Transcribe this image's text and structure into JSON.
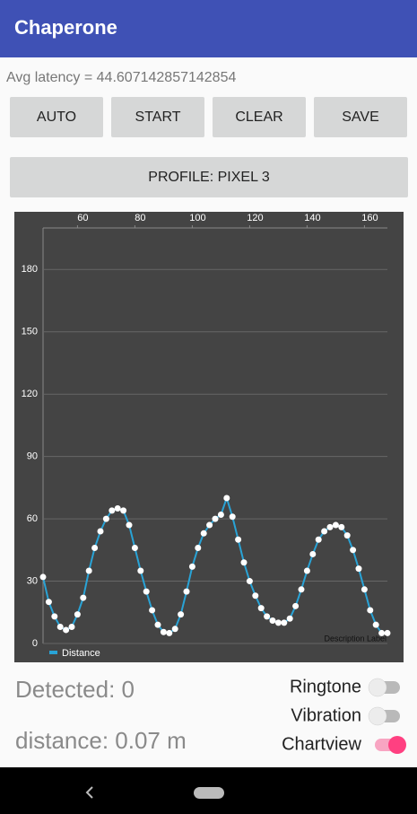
{
  "app_bar": {
    "title": "Chaperone"
  },
  "latency": "Avg latency = 44.607142857142854",
  "buttons": [
    "AUTO",
    "START",
    "CLEAR",
    "SAVE"
  ],
  "profile_button": "PROFILE: PIXEL 3",
  "chart_data": {
    "type": "line",
    "description": "Description Label",
    "x": [
      48,
      50,
      52,
      54,
      56,
      58,
      60,
      62,
      64,
      66,
      68,
      70,
      72,
      74,
      76,
      78,
      80,
      82,
      84,
      86,
      88,
      90,
      92,
      94,
      96,
      98,
      100,
      102,
      104,
      106,
      108,
      110,
      112,
      114,
      116,
      118,
      120,
      122,
      124,
      126,
      128,
      130,
      132,
      134,
      136,
      138,
      140,
      142,
      144,
      146,
      148,
      150,
      152,
      154,
      156,
      158,
      160,
      162,
      164,
      166,
      168
    ],
    "series": [
      {
        "name": "Distance",
        "color": "#29a3d6",
        "point_color": "#ffffff",
        "values": [
          32,
          20,
          13,
          8,
          6.5,
          8,
          14,
          22,
          35,
          46,
          54,
          60,
          64,
          65,
          64,
          57,
          46,
          35,
          25,
          16,
          9,
          5.5,
          5,
          7,
          14,
          25,
          37,
          46,
          53,
          57,
          60,
          62,
          70,
          61,
          50,
          39,
          30,
          23,
          17,
          13,
          11,
          10,
          10,
          12,
          18,
          26,
          35,
          43,
          50,
          54,
          56,
          57,
          56,
          52,
          45,
          36,
          26,
          16,
          9,
          5,
          5
        ]
      }
    ],
    "xlim": [
      48,
      168
    ],
    "ylim": [
      0,
      200
    ],
    "xticks": [
      60,
      80,
      100,
      120,
      140,
      160
    ],
    "yticks": [
      0,
      30,
      60,
      90,
      120,
      150,
      180
    ],
    "grid": true
  },
  "detected": "Detected: 0",
  "distance": "distance: 0.07 m",
  "switches": [
    {
      "label": "Ringtone",
      "on": false
    },
    {
      "label": "Vibration",
      "on": false
    },
    {
      "label": "Chartview",
      "on": true
    }
  ]
}
